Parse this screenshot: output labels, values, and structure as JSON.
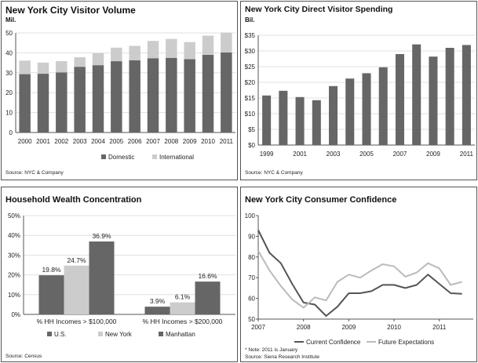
{
  "colors": {
    "dark": "#666666",
    "light": "#cccccc",
    "mid": "#9a9a9a",
    "grid": "#d9d9d9",
    "axis": "#555555"
  },
  "charts": {
    "visitor_volume": {
      "title": "New York City Visitor Volume",
      "subtitle": "Mil.",
      "source": "Source: NYC & Company"
    },
    "visitor_spending": {
      "title": "New York City Direct Visitor Spending",
      "subtitle": "Bil.",
      "source": "Source: NYC & Company"
    },
    "wealth": {
      "title": "Household Wealth Concentration",
      "source": "Source: Census"
    },
    "confidence": {
      "title": "New York City Consumer Confidence",
      "note": "* Note: 2011 is January",
      "source": "Source: Siena Research Institute"
    }
  },
  "chart_data": [
    {
      "id": "visitor_volume",
      "type": "bar",
      "stacked": true,
      "title": "New York City Visitor Volume",
      "ylabel": "Mil.",
      "categories": [
        "2000",
        "2001",
        "2002",
        "2003",
        "2004",
        "2005",
        "2006",
        "2007",
        "2008",
        "2009",
        "2010",
        "2011"
      ],
      "series": [
        {
          "name": "Domestic",
          "values": [
            29.3,
            29.5,
            30.2,
            33.0,
            33.8,
            35.8,
            36.3,
            37.3,
            37.5,
            36.8,
            39.0,
            40.2
          ]
        },
        {
          "name": "International",
          "values": [
            6.8,
            5.6,
            5.6,
            4.8,
            6.0,
            6.8,
            7.2,
            8.7,
            9.5,
            8.6,
            9.6,
            10.0
          ]
        }
      ],
      "ylim": [
        0,
        50
      ],
      "yticks": [
        "0",
        "10",
        "20",
        "30",
        "40",
        "50"
      ],
      "grid": true,
      "legend": "bottom"
    },
    {
      "id": "visitor_spending",
      "type": "bar",
      "title": "New York City Direct Visitor Spending",
      "ylabel": "Bil.",
      "categories": [
        "1999",
        "2000",
        "2001",
        "2002",
        "2003",
        "2004",
        "2005",
        "2006",
        "2007",
        "2008",
        "2009",
        "2010",
        "2011"
      ],
      "xtick_labels": [
        "1999",
        "",
        "2001",
        "",
        "2003",
        "",
        "2005",
        "",
        "2007",
        "",
        "2009",
        "",
        "2011"
      ],
      "values": [
        15.8,
        17.3,
        15.3,
        14.3,
        18.8,
        21.2,
        22.9,
        24.8,
        29.0,
        32.1,
        28.2,
        31.0,
        31.9
      ],
      "ylim": [
        0,
        35
      ],
      "yticks": [
        "$0",
        "$5",
        "$10",
        "$15",
        "$20",
        "$25",
        "$30",
        "$35"
      ],
      "grid": true
    },
    {
      "id": "wealth",
      "type": "bar",
      "title": "Household Wealth Concentration",
      "categories": [
        "% HH Incomes > $100,000",
        "% HH Incomes > $200,000"
      ],
      "series": [
        {
          "name": "U.S.",
          "values": [
            19.8,
            3.9
          ],
          "labels": [
            "19.8%",
            "3.9%"
          ]
        },
        {
          "name": "New York",
          "values": [
            24.7,
            6.1
          ],
          "labels": [
            "24.7%",
            "6.1%"
          ]
        },
        {
          "name": "Manhattan",
          "values": [
            36.9,
            16.6
          ],
          "labels": [
            "36.9%",
            "16.6%"
          ]
        }
      ],
      "ylim": [
        0,
        50
      ],
      "yticks": [
        "0%",
        "10%",
        "20%",
        "30%",
        "40%",
        "50%"
      ],
      "grid": true,
      "legend": "bottom"
    },
    {
      "id": "confidence",
      "type": "line",
      "title": "New York City Consumer Confidence",
      "xlim": [
        2007,
        2011.75
      ],
      "xticks": [
        2007,
        2008,
        2009,
        2010,
        2011
      ],
      "xtick_labels": [
        "2007",
        "2008",
        "2009",
        "2010",
        "2011"
      ],
      "ylim": [
        50,
        100
      ],
      "yticks": [
        "50",
        "60",
        "70",
        "80",
        "90",
        "100"
      ],
      "series": [
        {
          "name": "Current Confidence",
          "x": [
            2007.0,
            2007.25,
            2007.5,
            2007.75,
            2008.0,
            2008.25,
            2008.5,
            2008.75,
            2009.0,
            2009.25,
            2009.5,
            2009.75,
            2010.0,
            2010.25,
            2010.5,
            2010.75,
            2011.0,
            2011.25,
            2011.5
          ],
          "y": [
            93,
            82,
            77,
            67,
            58,
            57,
            51.5,
            56,
            62.5,
            62.5,
            63.5,
            66.5,
            66.5,
            65,
            66.5,
            71.5,
            67,
            62.5,
            62.2
          ]
        },
        {
          "name": "Future Expectations",
          "x": [
            2007.0,
            2007.25,
            2007.5,
            2007.75,
            2008.0,
            2008.25,
            2008.5,
            2008.75,
            2009.0,
            2009.25,
            2009.5,
            2009.75,
            2010.0,
            2010.25,
            2010.5,
            2010.75,
            2011.0,
            2011.25,
            2011.5
          ],
          "y": [
            83,
            73.5,
            66,
            59.5,
            55.5,
            60.5,
            59,
            68,
            71.5,
            70,
            73.5,
            76.5,
            75.5,
            70.5,
            72.5,
            77,
            74.5,
            66.5,
            68
          ]
        }
      ],
      "grid": false,
      "legend": "bottom"
    }
  ]
}
